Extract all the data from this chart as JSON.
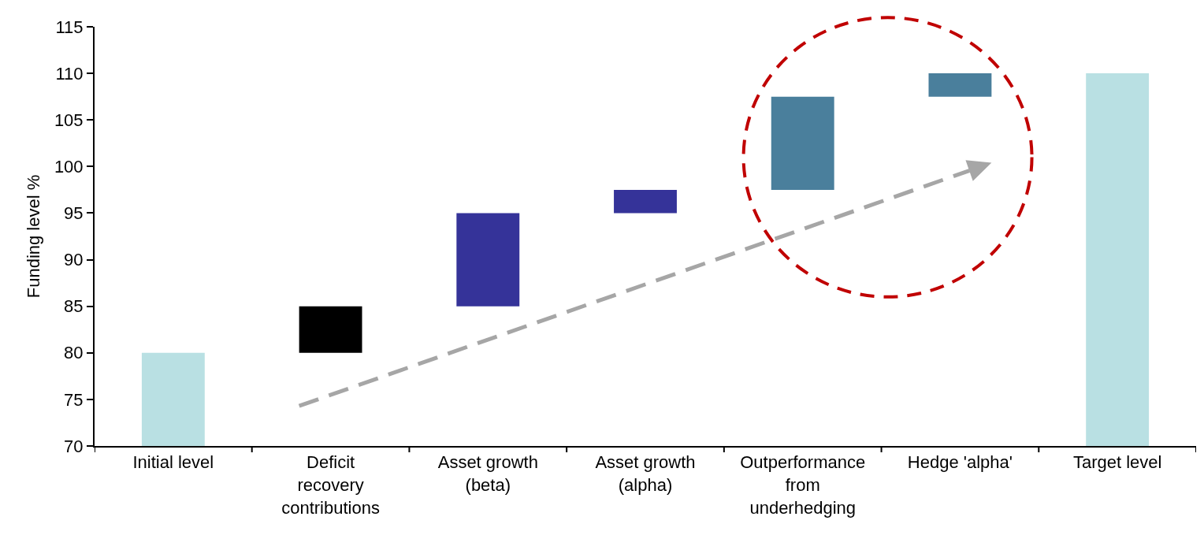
{
  "chart_data": {
    "type": "bar",
    "ylabel": "Funding level %",
    "categories": [
      "Initial level",
      "Deficit recovery contributions",
      "Asset growth (beta)",
      "Asset growth (alpha)",
      "Outperformance from underhedging",
      "Hedge 'alpha'",
      "Target level"
    ],
    "values": [
      10,
      5,
      10,
      2.5,
      10,
      2.5,
      40
    ],
    "base": [
      70,
      80,
      85,
      95,
      97.5,
      107.5,
      70
    ],
    "colors": [
      "#b9e0e3",
      "#000000",
      "#353399",
      "#353399",
      "#4a7f9c",
      "#4a7f9c",
      "#b9e0e3"
    ],
    "ylim": [
      70,
      115
    ],
    "yticks": [
      70,
      75,
      80,
      85,
      90,
      95,
      100,
      105,
      110,
      115
    ],
    "grid": false,
    "legend": false
  }
}
